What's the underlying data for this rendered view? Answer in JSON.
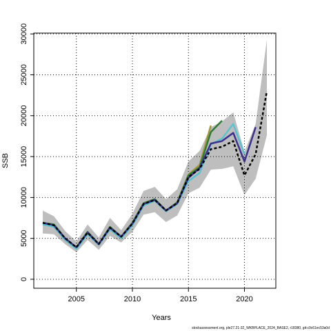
{
  "chart_data": {
    "type": "line",
    "x_label": "Years",
    "y_label": "SSB",
    "footer": "stockassessment.org, ple27.21-32_WKBPLACE_2024_BASE2, r18380, git:c9c61ec53a0d",
    "x": [
      2002,
      2003,
      2004,
      2005,
      2006,
      2007,
      2008,
      2009,
      2010,
      2011,
      2012,
      2013,
      2014,
      2015,
      2016,
      2017,
      2018,
      2019,
      2020,
      2021,
      2022
    ],
    "xlim": [
      2001.2,
      2022.8
    ],
    "xticks": [
      2005,
      2010,
      2015,
      2020
    ],
    "ylim": [
      -1100,
      30100
    ],
    "yticks": [
      0,
      5000,
      10000,
      15000,
      20000,
      25000,
      30000
    ],
    "grid": true,
    "band": {
      "color": "#bebebe",
      "lower": [
        5600,
        5500,
        4300,
        3300,
        4800,
        3600,
        5300,
        4500,
        5800,
        7900,
        8200,
        7000,
        7800,
        10500,
        11200,
        13400,
        13500,
        13800,
        10300,
        12300,
        17600
      ],
      "upper": [
        8400,
        7700,
        5900,
        4600,
        6700,
        5100,
        7500,
        6000,
        8000,
        10800,
        11300,
        9800,
        11000,
        14400,
        15700,
        18600,
        19300,
        20400,
        15600,
        19000,
        29300
      ]
    },
    "series": [
      {
        "color": "#a39a3c",
        "values": [
          6900,
          6700,
          5000,
          3900,
          5800,
          4300,
          6400,
          5200,
          6900,
          9300,
          9800,
          8400,
          9400,
          12800,
          14000,
          18800,
          null,
          null,
          null,
          null,
          null
        ]
      },
      {
        "color": "#2f7a3a",
        "values": [
          6900,
          6700,
          5000,
          3900,
          5800,
          4300,
          6400,
          5200,
          6900,
          9300,
          9800,
          8400,
          9400,
          12700,
          13700,
          18000,
          19400,
          null,
          null,
          null,
          null
        ]
      },
      {
        "color": "#5cc2cc",
        "values": [
          6700,
          6400,
          4800,
          3700,
          5500,
          4200,
          6100,
          5000,
          6600,
          9000,
          9600,
          8300,
          9200,
          12000,
          13000,
          16500,
          17200,
          19000,
          15300,
          null,
          null
        ]
      },
      {
        "color": "#3b2f8f",
        "values": [
          6900,
          6600,
          5000,
          3900,
          5700,
          4300,
          6300,
          5200,
          6800,
          9200,
          9700,
          8400,
          9300,
          12400,
          13600,
          16600,
          16900,
          17900,
          14400,
          18600,
          null
        ]
      },
      {
        "color": "#000000",
        "dashed": true,
        "values": [
          6900,
          6600,
          5000,
          3900,
          5700,
          4300,
          6300,
          5200,
          6800,
          9200,
          9700,
          8400,
          9300,
          12500,
          13500,
          15900,
          16200,
          16900,
          12700,
          15300,
          23000
        ]
      }
    ]
  }
}
